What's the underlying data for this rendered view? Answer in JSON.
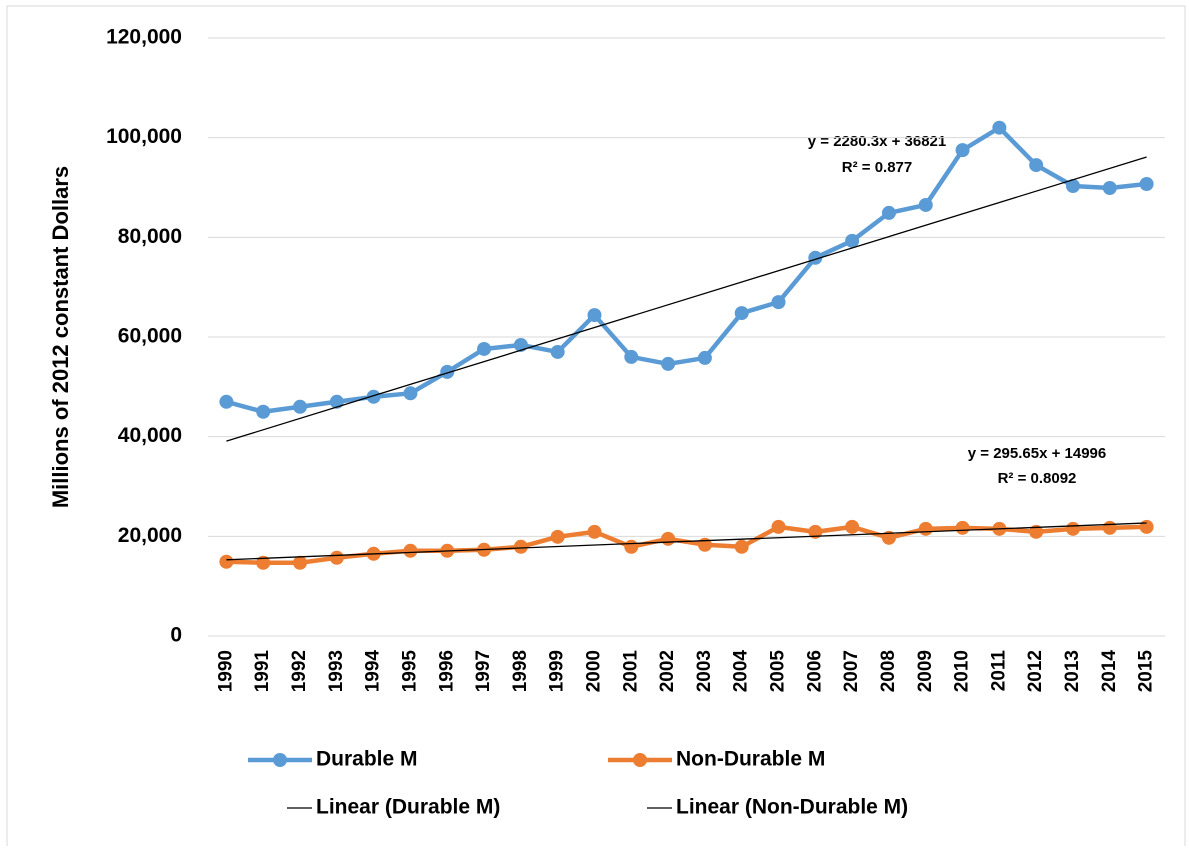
{
  "chart_data": {
    "type": "line",
    "y_label": "Millions of 2012 constant Dollars",
    "categories": [
      "1990",
      "1991",
      "1992",
      "1993",
      "1994",
      "1995",
      "1996",
      "1997",
      "1998",
      "1999",
      "2000",
      "2001",
      "2002",
      "2003",
      "2004",
      "2005",
      "2006",
      "2007",
      "2008",
      "2009",
      "2010",
      "2011",
      "2012",
      "2013",
      "2014",
      "2015"
    ],
    "series": [
      {
        "name": "Durable M",
        "color": "#5b9bd5",
        "values": [
          47000,
          45000,
          46000,
          47000,
          48000,
          48700,
          53000,
          57600,
          58400,
          57000,
          64400,
          56000,
          54600,
          55800,
          64800,
          67000,
          75900,
          79300,
          84900,
          86500,
          97500,
          102000,
          94500,
          90300,
          89900,
          90700
        ]
      },
      {
        "name": "Non-Durable M",
        "color": "#ed7d31",
        "values": [
          14900,
          14700,
          14700,
          15700,
          16500,
          17100,
          17100,
          17300,
          17900,
          19900,
          20900,
          17900,
          19500,
          18300,
          17900,
          21900,
          20900,
          21900,
          19700,
          21500,
          21700,
          21500,
          20900,
          21500,
          21700,
          21900
        ]
      }
    ],
    "trendlines": [
      {
        "name": "Linear (Durable M)",
        "color": "#000000",
        "slope": 2280.3,
        "intercept": 36821,
        "equation": "y = 2280.3x + 36821",
        "r2_label": "R² = 0.877",
        "r2": 0.877
      },
      {
        "name": "Linear (Non-Durable M)",
        "color": "#000000",
        "slope": 295.65,
        "intercept": 14996,
        "equation": "y = 295.65x + 14996",
        "r2_label": "R² = 0.8092",
        "r2": 0.8092
      }
    ],
    "ylim": [
      0,
      120000
    ],
    "yticks": [
      0,
      {
        "value": 20000,
        "label": "20,000"
      },
      {
        "value": 40000,
        "label": "40,000"
      },
      {
        "value": 60000,
        "label": "60,000"
      },
      {
        "value": 80000,
        "label": "80,000"
      },
      {
        "value": 100000,
        "label": "100,000"
      },
      {
        "value": 120000,
        "label": "120,000"
      }
    ],
    "grid": true,
    "legend": "bottom"
  }
}
